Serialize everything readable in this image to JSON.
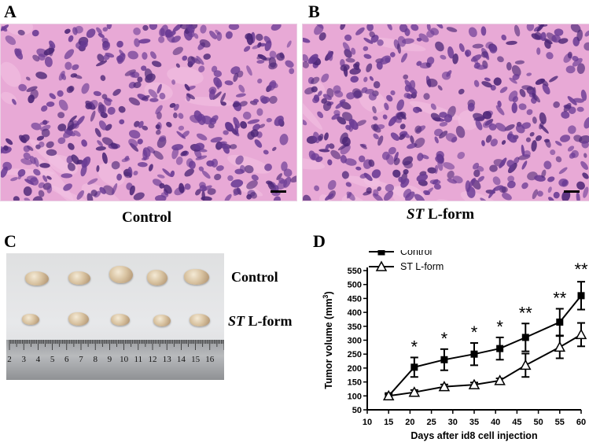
{
  "panels": {
    "a": {
      "letter": "A",
      "caption": "Control"
    },
    "b": {
      "letter": "B",
      "caption_italic": "ST",
      "caption_rest": " L-form"
    },
    "c": {
      "letter": "C",
      "row1_label": "Control",
      "row2_label_italic": "ST",
      "row2_label_rest": " L-form",
      "ruler_ticks": [
        "2",
        "3",
        "4",
        "5",
        "6",
        "7",
        "8",
        "9",
        "10",
        "11",
        "12",
        "13",
        "14",
        "15",
        "16"
      ]
    },
    "d": {
      "letter": "D"
    }
  },
  "colors": {
    "histo_base": "#e8a9d6",
    "histo_stroma": "#f3c3e4",
    "nucleus": "#6a3a94",
    "nucleus_dark": "#4c2576",
    "scale_bar": "#000000"
  },
  "chart_data": {
    "type": "line",
    "xlabel": "Days after id8 cell injection",
    "ylabel": "Tumor volume (mm3)",
    "ylabel_main": "Tumor volume (mm",
    "ylabel_sup": "3",
    "ylabel_end": ")",
    "xlim": [
      10,
      60
    ],
    "ylim": [
      50,
      550
    ],
    "xticks": [
      10,
      15,
      20,
      25,
      30,
      35,
      40,
      45,
      50,
      55,
      60
    ],
    "yticks": [
      50,
      100,
      150,
      200,
      250,
      300,
      350,
      400,
      450,
      500,
      550
    ],
    "series": [
      {
        "name": "Control",
        "marker": "square",
        "x": [
          15,
          21,
          28,
          35,
          41,
          47,
          55,
          60
        ],
        "y": [
          100,
          203,
          230,
          250,
          270,
          310,
          365,
          460
        ],
        "err": [
          10,
          35,
          38,
          40,
          40,
          50,
          48,
          50
        ]
      },
      {
        "name": "ST L-form",
        "marker": "triangle",
        "x": [
          15,
          21,
          28,
          35,
          41,
          47,
          55,
          60
        ],
        "y": [
          100,
          113,
          133,
          140,
          155,
          210,
          275,
          320
        ],
        "err": [
          5,
          8,
          8,
          8,
          8,
          42,
          40,
          42
        ]
      }
    ],
    "annotations": [
      {
        "x": 21,
        "text": "*"
      },
      {
        "x": 28,
        "text": "*"
      },
      {
        "x": 35,
        "text": "*"
      },
      {
        "x": 41,
        "text": "*"
      },
      {
        "x": 47,
        "text": "**"
      },
      {
        "x": 55,
        "text": "**"
      },
      {
        "x": 60,
        "text": "**"
      }
    ],
    "legend_position": "top-left",
    "grid": false
  }
}
